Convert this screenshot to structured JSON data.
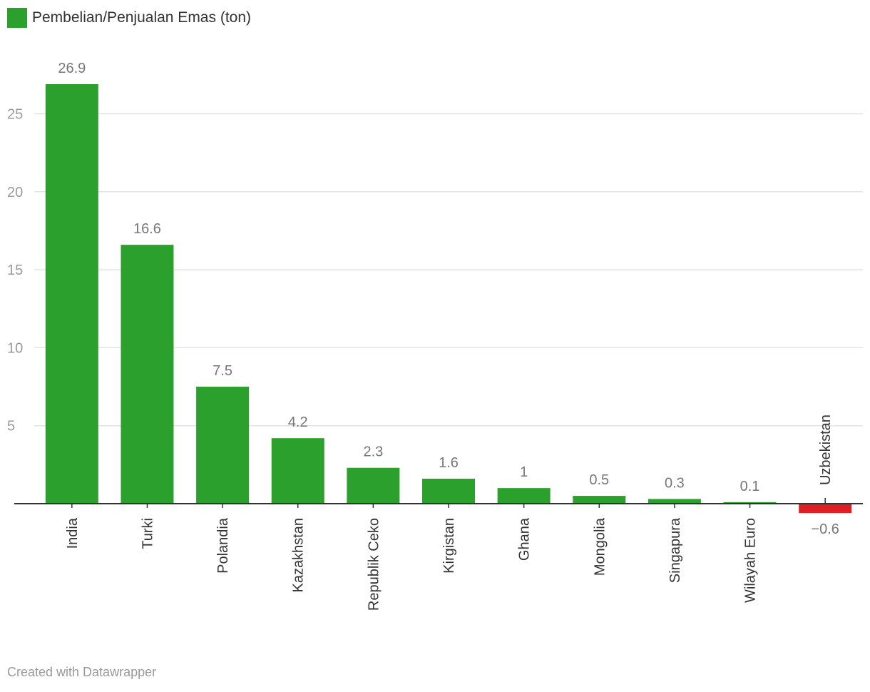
{
  "legend": {
    "label": "Pembelian/Penjualan Emas (ton)",
    "color": "#2ca02c"
  },
  "colors": {
    "positive": "#2ca02c",
    "negative": "#e02020",
    "grid": "#e2e2e2",
    "baseline": "#333333"
  },
  "chart_data": {
    "type": "bar",
    "title": "",
    "xlabel": "",
    "ylabel": "",
    "ylim": [
      -1,
      27
    ],
    "yticks": [
      5,
      10,
      15,
      20,
      25
    ],
    "grid": true,
    "legend_position": "top-left",
    "categories": [
      "India",
      "Turki",
      "Polandia",
      "Kazakhstan",
      "Republik Ceko",
      "Kirgistan",
      "Ghana",
      "Mongolia",
      "Singapura",
      "Wilayah Euro",
      "Uzbekistan"
    ],
    "value_labels": [
      "26.9",
      "16.6",
      "7.5",
      "4.2",
      "2.3",
      "1.6",
      "1",
      "0.5",
      "0.3",
      "0.1",
      "−0.6"
    ],
    "series": [
      {
        "name": "Pembelian/Penjualan Emas (ton)",
        "values": [
          26.9,
          16.6,
          7.5,
          4.2,
          2.3,
          1.6,
          1.0,
          0.5,
          0.3,
          0.1,
          -0.6
        ]
      }
    ]
  },
  "footer": {
    "credit": "Created with Datawrapper"
  }
}
